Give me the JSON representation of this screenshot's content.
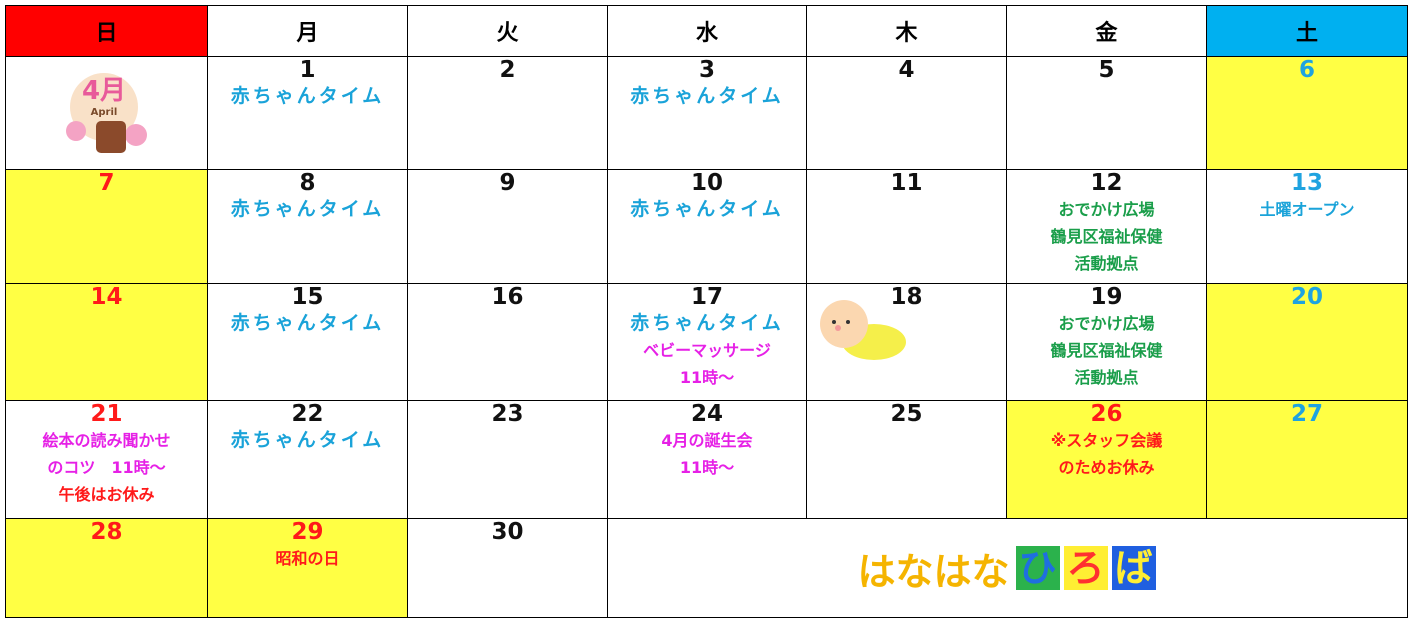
{
  "header": {
    "days": [
      "日",
      "月",
      "火",
      "水",
      "木",
      "金",
      "土"
    ]
  },
  "weeks": [
    [
      {
        "badge": "4月",
        "badge_sub": "April"
      },
      {
        "date": 1,
        "notes": [
          "赤ちゃんタイム"
        ]
      },
      {
        "date": 2
      },
      {
        "date": 3,
        "notes": [
          "赤ちゃんタイム"
        ]
      },
      {
        "date": 4
      },
      {
        "date": 5
      },
      {
        "date": 6
      }
    ],
    [
      {
        "date": 7
      },
      {
        "date": 8,
        "notes": [
          "赤ちゃんタイム"
        ]
      },
      {
        "date": 9
      },
      {
        "date": 10,
        "notes": [
          "赤ちゃんタイム"
        ]
      },
      {
        "date": 11
      },
      {
        "date": 12,
        "notes": [
          "おでかけ広場",
          "鶴見区福祉保健",
          "活動拠点"
        ]
      },
      {
        "date": 13,
        "notes": [
          "土曜オープン"
        ]
      }
    ],
    [
      {
        "date": 14
      },
      {
        "date": 15,
        "notes": [
          "赤ちゃんタイム"
        ]
      },
      {
        "date": 16
      },
      {
        "date": 17,
        "notes": [
          "赤ちゃんタイム",
          "ベビーマッサージ",
          "11時～"
        ]
      },
      {
        "date": 18
      },
      {
        "date": 19,
        "notes": [
          "おでかけ広場",
          "鶴見区福祉保健",
          "活動拠点"
        ]
      },
      {
        "date": 20
      }
    ],
    [
      {
        "date": 21,
        "notes": [
          "絵本の読み聞かせ",
          "のコツ　11時～",
          "午後はお休み"
        ]
      },
      {
        "date": 22,
        "notes": [
          "赤ちゃんタイム"
        ]
      },
      {
        "date": 23
      },
      {
        "date": 24,
        "notes": [
          "4月の誕生会",
          "11時～"
        ]
      },
      {
        "date": 25
      },
      {
        "date": 26,
        "notes": [
          "※スタッフ会議",
          "のためお休み"
        ]
      },
      {
        "date": 27
      }
    ],
    [
      {
        "date": 28
      },
      {
        "date": 29,
        "notes": [
          "昭和の日"
        ]
      },
      {
        "date": 30
      }
    ]
  ],
  "logo": {
    "text": "はなはな",
    "boxed": [
      "ひ",
      "ろ",
      "ば"
    ]
  }
}
